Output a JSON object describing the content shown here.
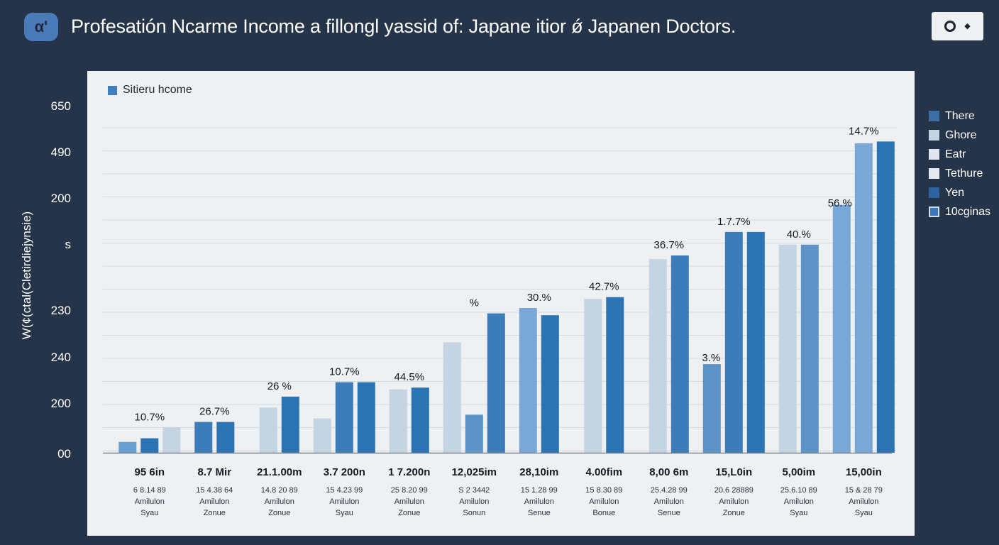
{
  "header": {
    "app_icon_glyph": "α'",
    "title": "Profesatión Ncarme Income a fillongl yassid of: Japane itior ǿ Japanen Doctors.",
    "menu_icon": "circle-toggle-icon"
  },
  "chart_data": {
    "type": "bar",
    "title": "Profesatión Ncarme Income a fillongl yassid of: Japane itior ǿ Japanen Doctors.",
    "ylabel": "W(¢(ctal(Cletirdiejynsie)",
    "y_ticks": [
      "650",
      "490",
      "200",
      "s",
      "230",
      "240",
      "200",
      "00"
    ],
    "inner_legend": "Sitieru hcome",
    "grid": true,
    "legend_position": "right",
    "legend": [
      {
        "label": "There",
        "color": "#3d6ea3"
      },
      {
        "label": "Ghore",
        "color": "#c5d4e2"
      },
      {
        "label": "Eatr",
        "color": "#dfe6ed"
      },
      {
        "label": "Tethure",
        "color": "#e3e8ee"
      },
      {
        "label": "Yen",
        "color": "#2d63a0"
      },
      {
        "label": "10cginas",
        "color": "#3a78bb"
      }
    ],
    "groups": [
      {
        "label": "95 6in",
        "sub1": "6 8.14 89",
        "sub2": "Amilulon",
        "sub3": "Syau",
        "annotation": "10.7%",
        "bars": [
          {
            "value": 0.06,
            "color": "#6a9fd1"
          },
          {
            "value": 0.08,
            "color": "#2b73b3"
          },
          {
            "value": 0.14,
            "color": "#c4d4e3"
          }
        ]
      },
      {
        "label": "8.7 Mir",
        "sub1": "15 4.38 64",
        "sub2": "Amilulon",
        "sub3": "Zonue",
        "annotation": "26.7%",
        "bars": [
          {
            "value": 0.17,
            "color": "#3c7cb8"
          },
          {
            "value": 0.17,
            "color": "#2b73b3"
          }
        ]
      },
      {
        "label": "21.1.00m",
        "sub1": "14.8 20 89",
        "sub2": "Amilulon",
        "sub3": "Zonue",
        "annotation": "26 %",
        "bars": [
          {
            "value": 0.25,
            "color": "#c4d4e3"
          },
          {
            "value": 0.31,
            "color": "#2b73b3"
          }
        ]
      },
      {
        "label": "3.7 200n",
        "sub1": "15 4.23 99",
        "sub2": "Amilulon",
        "sub3": "Syau",
        "annotation": "10.7%",
        "bars": [
          {
            "value": 0.19,
            "color": "#c4d4e3"
          },
          {
            "value": 0.39,
            "color": "#3c7cb8"
          },
          {
            "value": 0.39,
            "color": "#2b73b3"
          }
        ]
      },
      {
        "label": "1 7.200n",
        "sub1": "25 8.20 99",
        "sub2": "Amilulon",
        "sub3": "Zonue",
        "annotation": "44.5%",
        "bars": [
          {
            "value": 0.35,
            "color": "#c4d4e3"
          },
          {
            "value": 0.36,
            "color": "#2b73b3"
          }
        ]
      },
      {
        "label": "12,025im",
        "sub1": "S 2 3442",
        "sub2": "Amilulon",
        "sub3": "Sonun",
        "annotation": "%",
        "bars": [
          {
            "value": 0.61,
            "color": "#c4d4e3"
          },
          {
            "value": 0.21,
            "color": "#5d93c6"
          },
          {
            "value": 0.77,
            "color": "#3c7cb8"
          }
        ]
      },
      {
        "label": "28,10im",
        "sub1": "15 1.28 99",
        "sub2": "Amilulon",
        "sub3": "Senue",
        "annotation": "30.%",
        "bars": [
          {
            "value": 0.8,
            "color": "#7aa8d6"
          },
          {
            "value": 0.76,
            "color": "#2b73b3"
          }
        ]
      },
      {
        "label": "4.00fim",
        "sub1": "15 8.30 89",
        "sub2": "Amilulon",
        "sub3": "Bonue",
        "annotation": "42.7%",
        "bars": [
          {
            "value": 0.85,
            "color": "#c4d4e3"
          },
          {
            "value": 0.86,
            "color": "#2b73b3"
          }
        ]
      },
      {
        "label": "8,00 6m",
        "sub1": "25.4.28 99",
        "sub2": "Amilulon",
        "sub3": "Senue",
        "annotation": "36.7%",
        "bars": [
          {
            "value": 1.07,
            "color": "#c4d4e3"
          },
          {
            "value": 1.09,
            "color": "#3c7cb8"
          }
        ]
      },
      {
        "label": "15,L0in",
        "sub1": "20.6 28889",
        "sub2": "Amilulon",
        "sub3": "Zonue",
        "annotation": "1.7.7%",
        "bars": [
          {
            "value": 0.49,
            "color": "#5d93c6"
          },
          {
            "value": 1.22,
            "color": "#3c7cb8"
          },
          {
            "value": 1.22,
            "color": "#2b73b3"
          }
        ]
      },
      {
        "label": "5,00im",
        "sub1": "25.6.10 89",
        "sub2": "Amilulon",
        "sub3": "Syau",
        "annotation": "40.%",
        "bars": [
          {
            "value": 1.15,
            "color": "#c4d4e3"
          },
          {
            "value": 1.15,
            "color": "#5d93c6"
          }
        ]
      },
      {
        "label": "15,00in",
        "sub1": "15 & 28 79",
        "sub2": "Amilulon",
        "sub3": "Syau",
        "annotation": "14.7%",
        "bars": [
          {
            "value": 1.37,
            "color": "#7aa8d6"
          },
          {
            "value": 1.71,
            "color": "#7aa8d6"
          },
          {
            "value": 1.72,
            "color": "#2b73b3"
          }
        ]
      }
    ],
    "extra_annotation": "56.%",
    "extra_annotation_2": "3.%"
  }
}
